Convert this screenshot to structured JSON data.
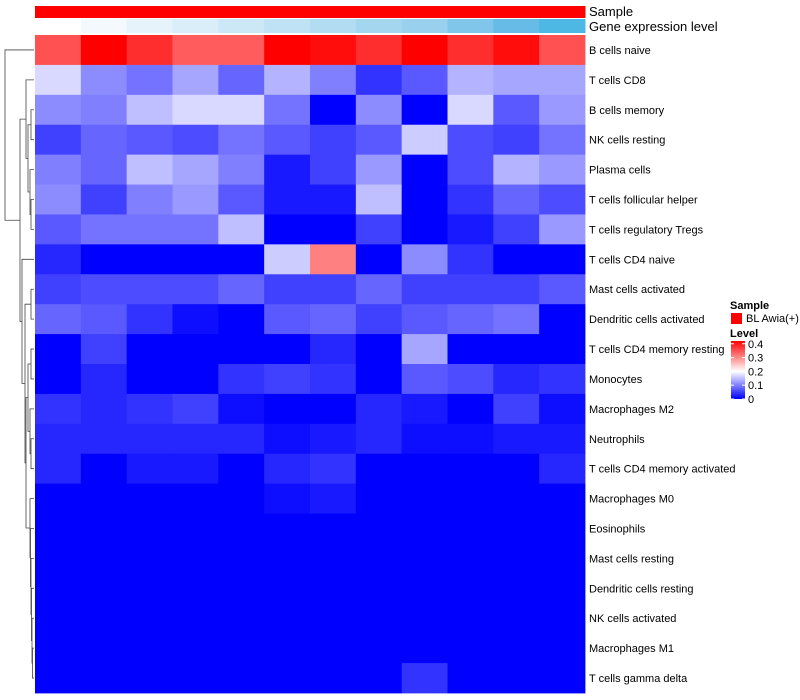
{
  "chart_data": {
    "type": "heatmap",
    "annotations": {
      "sample": {
        "label": "Sample",
        "colors": [
          "#FF0000",
          "#FF0000",
          "#FF0000",
          "#FF0000",
          "#FF0000",
          "#FF0000",
          "#FF0000",
          "#FF0000",
          "#FF0000",
          "#FF0000",
          "#FF0000",
          "#FF0000"
        ]
      },
      "gene_expression": {
        "label": "Gene expression level",
        "colors": [
          "#FFFFFF",
          "#F3F9FC",
          "#E6F3FA",
          "#D9EEF8",
          "#CCE8F6",
          "#BFE2F4",
          "#B2DCF2",
          "#A5D6F0",
          "#98D0EE",
          "#7FC6EA",
          "#66BCE6",
          "#4DB8E4"
        ]
      }
    },
    "rows": [
      "B cells naive",
      "T cells CD8",
      "B cells memory",
      "NK cells resting",
      "Plasma cells",
      "T cells follicular helper",
      "T cells regulatory  Tregs",
      "T cells CD4 naive",
      "Mast cells activated",
      "Dendritic cells activated",
      "T cells CD4 memory resting",
      "Monocytes",
      "Macrophages M2",
      "Neutrophils",
      "T cells CD4 memory activated",
      "Macrophages M0",
      "Eosinophils",
      "Mast cells resting",
      "Dendritic cells resting",
      "NK cells activated",
      "Macrophages M1",
      "T cells gamma delta"
    ],
    "columns_count": 12,
    "values": [
      [
        0.35,
        0.42,
        0.38,
        0.34,
        0.34,
        0.42,
        0.41,
        0.38,
        0.42,
        0.38,
        0.41,
        0.35
      ],
      [
        0.17,
        0.11,
        0.09,
        0.13,
        0.08,
        0.14,
        0.1,
        0.04,
        0.07,
        0.14,
        0.13,
        0.13
      ],
      [
        0.11,
        0.1,
        0.15,
        0.17,
        0.17,
        0.09,
        0.0,
        0.11,
        0.0,
        0.17,
        0.07,
        0.12
      ],
      [
        0.05,
        0.08,
        0.07,
        0.06,
        0.09,
        0.07,
        0.05,
        0.07,
        0.16,
        0.06,
        0.05,
        0.09
      ],
      [
        0.1,
        0.08,
        0.15,
        0.13,
        0.1,
        0.02,
        0.05,
        0.12,
        0.0,
        0.06,
        0.14,
        0.12
      ],
      [
        0.11,
        0.05,
        0.1,
        0.12,
        0.07,
        0.02,
        0.02,
        0.15,
        0.0,
        0.04,
        0.08,
        0.06
      ],
      [
        0.07,
        0.09,
        0.09,
        0.09,
        0.15,
        0.0,
        0.0,
        0.05,
        0.0,
        0.02,
        0.05,
        0.12
      ],
      [
        0.03,
        0.0,
        0.0,
        0.0,
        0.0,
        0.16,
        0.31,
        0.0,
        0.11,
        0.04,
        0.0,
        0.0
      ],
      [
        0.05,
        0.06,
        0.06,
        0.06,
        0.08,
        0.05,
        0.05,
        0.08,
        0.05,
        0.05,
        0.05,
        0.07
      ],
      [
        0.08,
        0.07,
        0.04,
        0.01,
        0.0,
        0.07,
        0.08,
        0.05,
        0.07,
        0.08,
        0.09,
        0.0
      ],
      [
        0.0,
        0.05,
        0.0,
        0.0,
        0.0,
        0.0,
        0.03,
        0.0,
        0.13,
        0.0,
        0.0,
        0.0
      ],
      [
        0.0,
        0.03,
        0.0,
        0.0,
        0.04,
        0.05,
        0.04,
        0.0,
        0.07,
        0.06,
        0.03,
        0.04
      ],
      [
        0.04,
        0.03,
        0.04,
        0.05,
        0.01,
        0.0,
        0.0,
        0.03,
        0.02,
        0.0,
        0.05,
        0.01
      ],
      [
        0.03,
        0.03,
        0.03,
        0.03,
        0.03,
        0.01,
        0.02,
        0.03,
        0.01,
        0.01,
        0.02,
        0.02
      ],
      [
        0.03,
        0.0,
        0.02,
        0.02,
        0.0,
        0.03,
        0.04,
        0.0,
        0.0,
        0.0,
        0.0,
        0.03
      ],
      [
        0.0,
        0.0,
        0.0,
        0.0,
        0.0,
        0.01,
        0.02,
        0.0,
        0.0,
        0.0,
        0.0,
        0.0
      ],
      [
        0.0,
        0.0,
        0.0,
        0.0,
        0.0,
        0.0,
        0.0,
        0.0,
        0.0,
        0.0,
        0.0,
        0.0
      ],
      [
        0.0,
        0.0,
        0.0,
        0.0,
        0.0,
        0.0,
        0.0,
        0.0,
        0.0,
        0.0,
        0.0,
        0.0
      ],
      [
        0.0,
        0.0,
        0.0,
        0.0,
        0.0,
        0.0,
        0.0,
        0.0,
        0.0,
        0.0,
        0.0,
        0.0
      ],
      [
        0.0,
        0.0,
        0.0,
        0.0,
        0.0,
        0.0,
        0.0,
        0.0,
        0.0,
        0.0,
        0.0,
        0.0
      ],
      [
        0.0,
        0.0,
        0.0,
        0.0,
        0.0,
        0.0,
        0.0,
        0.0,
        0.0,
        0.0,
        0.0,
        0.0
      ],
      [
        0.0,
        0.0,
        0.0,
        0.0,
        0.0,
        0.0,
        0.0,
        0.0,
        0.04,
        0.0,
        0.0,
        0.0
      ]
    ],
    "color_scale": {
      "min": 0,
      "mid": 0.2,
      "max": 0.42,
      "low_color": "#0000FF",
      "mid_color": "#FFFFFF",
      "high_color": "#FF0000"
    },
    "legend": {
      "placement": "right",
      "sample_title": "Sample",
      "sample_entry": "BL Awia(+)",
      "sample_color": "#FF0000",
      "level_title": "Level",
      "level_ticks": [
        "0.4",
        "0.3",
        "0.2",
        "0.1",
        "0"
      ]
    }
  }
}
